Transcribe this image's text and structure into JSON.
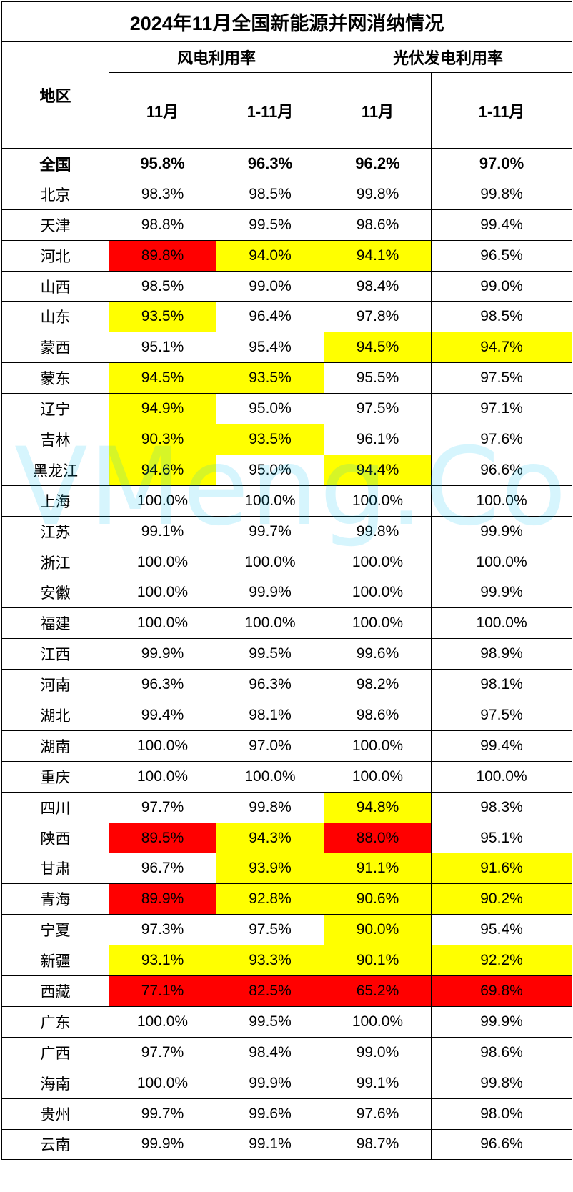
{
  "title": "2024年11月全国新能源并网消纳情况",
  "header": {
    "region": "地区",
    "wind": "风电利用率",
    "solar": "光伏发电利用率",
    "nov": "11月",
    "ytd": "1-11月"
  },
  "watermark": "VMeng.Co",
  "rows": [
    {
      "region": "全国",
      "values": [
        "95.8%",
        "96.3%",
        "96.2%",
        "97.0%"
      ],
      "highlights": [
        "",
        "",
        "",
        ""
      ]
    },
    {
      "region": "北京",
      "values": [
        "98.3%",
        "98.5%",
        "99.8%",
        "99.8%"
      ],
      "highlights": [
        "",
        "",
        "",
        ""
      ]
    },
    {
      "region": "天津",
      "values": [
        "98.8%",
        "99.5%",
        "98.6%",
        "99.4%"
      ],
      "highlights": [
        "",
        "",
        "",
        ""
      ]
    },
    {
      "region": "河北",
      "values": [
        "89.8%",
        "94.0%",
        "94.1%",
        "96.5%"
      ],
      "highlights": [
        "red",
        "yellow",
        "yellow",
        ""
      ]
    },
    {
      "region": "山西",
      "values": [
        "98.5%",
        "99.0%",
        "98.4%",
        "99.0%"
      ],
      "highlights": [
        "",
        "",
        "",
        ""
      ]
    },
    {
      "region": "山东",
      "values": [
        "93.5%",
        "96.4%",
        "97.8%",
        "98.5%"
      ],
      "highlights": [
        "yellow",
        "",
        "",
        ""
      ]
    },
    {
      "region": "蒙西",
      "values": [
        "95.1%",
        "95.4%",
        "94.5%",
        "94.7%"
      ],
      "highlights": [
        "",
        "",
        "yellow",
        "yellow"
      ]
    },
    {
      "region": "蒙东",
      "values": [
        "94.5%",
        "93.5%",
        "95.5%",
        "97.5%"
      ],
      "highlights": [
        "yellow",
        "yellow",
        "",
        ""
      ]
    },
    {
      "region": "辽宁",
      "values": [
        "94.9%",
        "95.0%",
        "97.5%",
        "97.1%"
      ],
      "highlights": [
        "yellow",
        "",
        "",
        ""
      ]
    },
    {
      "region": "吉林",
      "values": [
        "90.3%",
        "93.5%",
        "96.1%",
        "97.6%"
      ],
      "highlights": [
        "yellow",
        "yellow",
        "",
        ""
      ]
    },
    {
      "region": "黑龙江",
      "values": [
        "94.6%",
        "95.0%",
        "94.4%",
        "96.6%"
      ],
      "highlights": [
        "yellow",
        "",
        "yellow",
        ""
      ]
    },
    {
      "region": "上海",
      "values": [
        "100.0%",
        "100.0%",
        "100.0%",
        "100.0%"
      ],
      "highlights": [
        "",
        "",
        "",
        ""
      ]
    },
    {
      "region": "江苏",
      "values": [
        "99.1%",
        "99.7%",
        "99.8%",
        "99.9%"
      ],
      "highlights": [
        "",
        "",
        "",
        ""
      ]
    },
    {
      "region": "浙江",
      "values": [
        "100.0%",
        "100.0%",
        "100.0%",
        "100.0%"
      ],
      "highlights": [
        "",
        "",
        "",
        ""
      ]
    },
    {
      "region": "安徽",
      "values": [
        "100.0%",
        "99.9%",
        "100.0%",
        "99.9%"
      ],
      "highlights": [
        "",
        "",
        "",
        ""
      ]
    },
    {
      "region": "福建",
      "values": [
        "100.0%",
        "100.0%",
        "100.0%",
        "100.0%"
      ],
      "highlights": [
        "",
        "",
        "",
        ""
      ]
    },
    {
      "region": "江西",
      "values": [
        "99.9%",
        "99.5%",
        "99.6%",
        "98.9%"
      ],
      "highlights": [
        "",
        "",
        "",
        ""
      ]
    },
    {
      "region": "河南",
      "values": [
        "96.3%",
        "96.3%",
        "98.2%",
        "98.1%"
      ],
      "highlights": [
        "",
        "",
        "",
        ""
      ]
    },
    {
      "region": "湖北",
      "values": [
        "99.4%",
        "98.1%",
        "98.6%",
        "97.5%"
      ],
      "highlights": [
        "",
        "",
        "",
        ""
      ]
    },
    {
      "region": "湖南",
      "values": [
        "100.0%",
        "97.0%",
        "100.0%",
        "99.4%"
      ],
      "highlights": [
        "",
        "",
        "",
        ""
      ]
    },
    {
      "region": "重庆",
      "values": [
        "100.0%",
        "100.0%",
        "100.0%",
        "100.0%"
      ],
      "highlights": [
        "",
        "",
        "",
        ""
      ]
    },
    {
      "region": "四川",
      "values": [
        "97.7%",
        "99.8%",
        "94.8%",
        "98.3%"
      ],
      "highlights": [
        "",
        "",
        "yellow",
        ""
      ]
    },
    {
      "region": "陕西",
      "values": [
        "89.5%",
        "94.3%",
        "88.0%",
        "95.1%"
      ],
      "highlights": [
        "red",
        "yellow",
        "red",
        ""
      ]
    },
    {
      "region": "甘肃",
      "values": [
        "96.7%",
        "93.9%",
        "91.1%",
        "91.6%"
      ],
      "highlights": [
        "",
        "yellow",
        "yellow",
        "yellow"
      ]
    },
    {
      "region": "青海",
      "values": [
        "89.9%",
        "92.8%",
        "90.6%",
        "90.2%"
      ],
      "highlights": [
        "red",
        "yellow",
        "yellow",
        "yellow"
      ]
    },
    {
      "region": "宁夏",
      "values": [
        "97.3%",
        "97.5%",
        "90.0%",
        "95.4%"
      ],
      "highlights": [
        "",
        "",
        "yellow",
        ""
      ]
    },
    {
      "region": "新疆",
      "values": [
        "93.1%",
        "93.3%",
        "90.1%",
        "92.2%"
      ],
      "highlights": [
        "yellow",
        "yellow",
        "yellow",
        "yellow"
      ]
    },
    {
      "region": "西藏",
      "values": [
        "77.1%",
        "82.5%",
        "65.2%",
        "69.8%"
      ],
      "highlights": [
        "red",
        "red",
        "red",
        "red"
      ]
    },
    {
      "region": "广东",
      "values": [
        "100.0%",
        "99.5%",
        "100.0%",
        "99.9%"
      ],
      "highlights": [
        "",
        "",
        "",
        ""
      ]
    },
    {
      "region": "广西",
      "values": [
        "97.7%",
        "98.4%",
        "99.0%",
        "98.6%"
      ],
      "highlights": [
        "",
        "",
        "",
        ""
      ]
    },
    {
      "region": "海南",
      "values": [
        "100.0%",
        "99.9%",
        "99.1%",
        "99.8%"
      ],
      "highlights": [
        "",
        "",
        "",
        ""
      ]
    },
    {
      "region": "贵州",
      "values": [
        "99.7%",
        "99.6%",
        "97.6%",
        "98.0%"
      ],
      "highlights": [
        "",
        "",
        "",
        ""
      ]
    },
    {
      "region": "云南",
      "values": [
        "99.9%",
        "99.1%",
        "98.7%",
        "96.6%"
      ],
      "highlights": [
        "",
        "",
        "",
        ""
      ]
    }
  ],
  "colors": {
    "yellow": "#ffff00",
    "red": "#ff0000",
    "border": "#000000",
    "watermark": "#00bef0"
  }
}
